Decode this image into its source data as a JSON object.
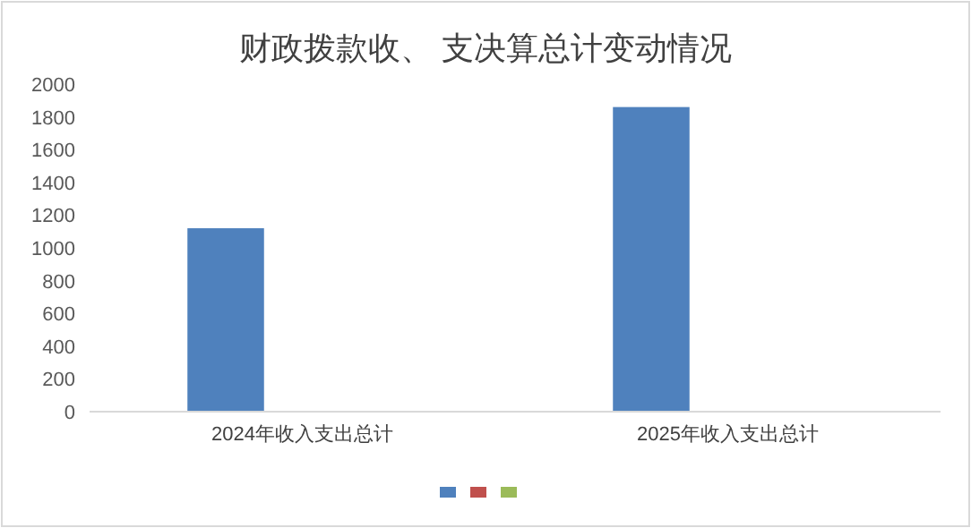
{
  "chart_data": {
    "type": "bar",
    "title": "财政拨款收、 支决算总计变动情况",
    "categories": [
      "2024年收入支出总计",
      "2025年收入支出总计"
    ],
    "series": [
      {
        "color": "#4f81bd",
        "values": [
          1120,
          1860
        ]
      },
      {
        "color": "#c0504d",
        "values": [
          null,
          null
        ]
      },
      {
        "color": "#9bbb59",
        "values": [
          null,
          null
        ]
      }
    ],
    "ylim": [
      0,
      2000
    ],
    "yticks": [
      0,
      200,
      400,
      600,
      800,
      1000,
      1200,
      1400,
      1600,
      1800,
      2000
    ]
  }
}
